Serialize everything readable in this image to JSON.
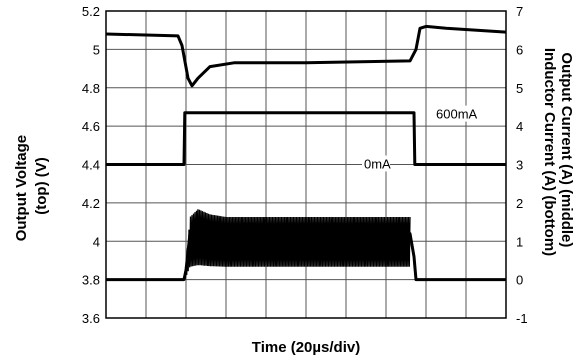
{
  "chart_data": {
    "type": "line",
    "title": "",
    "xlabel": "Time (20µs/div)",
    "ylabel_left": [
      "Output Voltage",
      "(top) (V)"
    ],
    "ylabel_right": [
      "Output Current (A) (middle)",
      "Inductor Current (A) (bottom)"
    ],
    "x_divisions": 10,
    "ylim_left": [
      3.6,
      5.2
    ],
    "ylim_right": [
      -1,
      7
    ],
    "yticks_left": [
      "5.2",
      "5",
      "4.8",
      "4.6",
      "4.4",
      "4.2",
      "4",
      "3.8",
      "3.6"
    ],
    "yticks_right": [
      "7",
      "6",
      "5",
      "4",
      "3",
      "2",
      "1",
      "0",
      "-1"
    ],
    "grid": true,
    "series": [
      {
        "axis": "left",
        "x": [
          0,
          1.8,
          1.9,
          1.98,
          2.05,
          2.15,
          2.3,
          2.6,
          3.2,
          5,
          7.6,
          7.75,
          7.85,
          8,
          8.5,
          10
        ],
        "y": [
          5.08,
          5.07,
          5.02,
          4.93,
          4.85,
          4.81,
          4.85,
          4.91,
          4.93,
          4.93,
          4.94,
          5.0,
          5.11,
          5.12,
          5.11,
          5.09
        ]
      },
      {
        "axis": "right",
        "x": [
          0,
          1.95,
          1.97,
          7.7,
          7.72,
          10
        ],
        "y": [
          3.0,
          3.0,
          4.35,
          4.35,
          3.0,
          3.0
        ]
      },
      {
        "axis": "right",
        "x": [
          0,
          1.95,
          2.0,
          2.1,
          2.3,
          2.6,
          3,
          7.6,
          7.7,
          7.75,
          10
        ],
        "y": [
          0.0,
          0.0,
          0.25,
          1.2,
          1.35,
          1.25,
          1.2,
          1.2,
          0.6,
          0.0,
          0.0
        ],
        "ripple": true
      }
    ],
    "annotations": [
      {
        "text": "600mA",
        "x": 8.25,
        "y": 4.3,
        "axis": "right"
      },
      {
        "text": "0mA",
        "x": 6.45,
        "y": 3.0,
        "axis": "right"
      }
    ]
  }
}
